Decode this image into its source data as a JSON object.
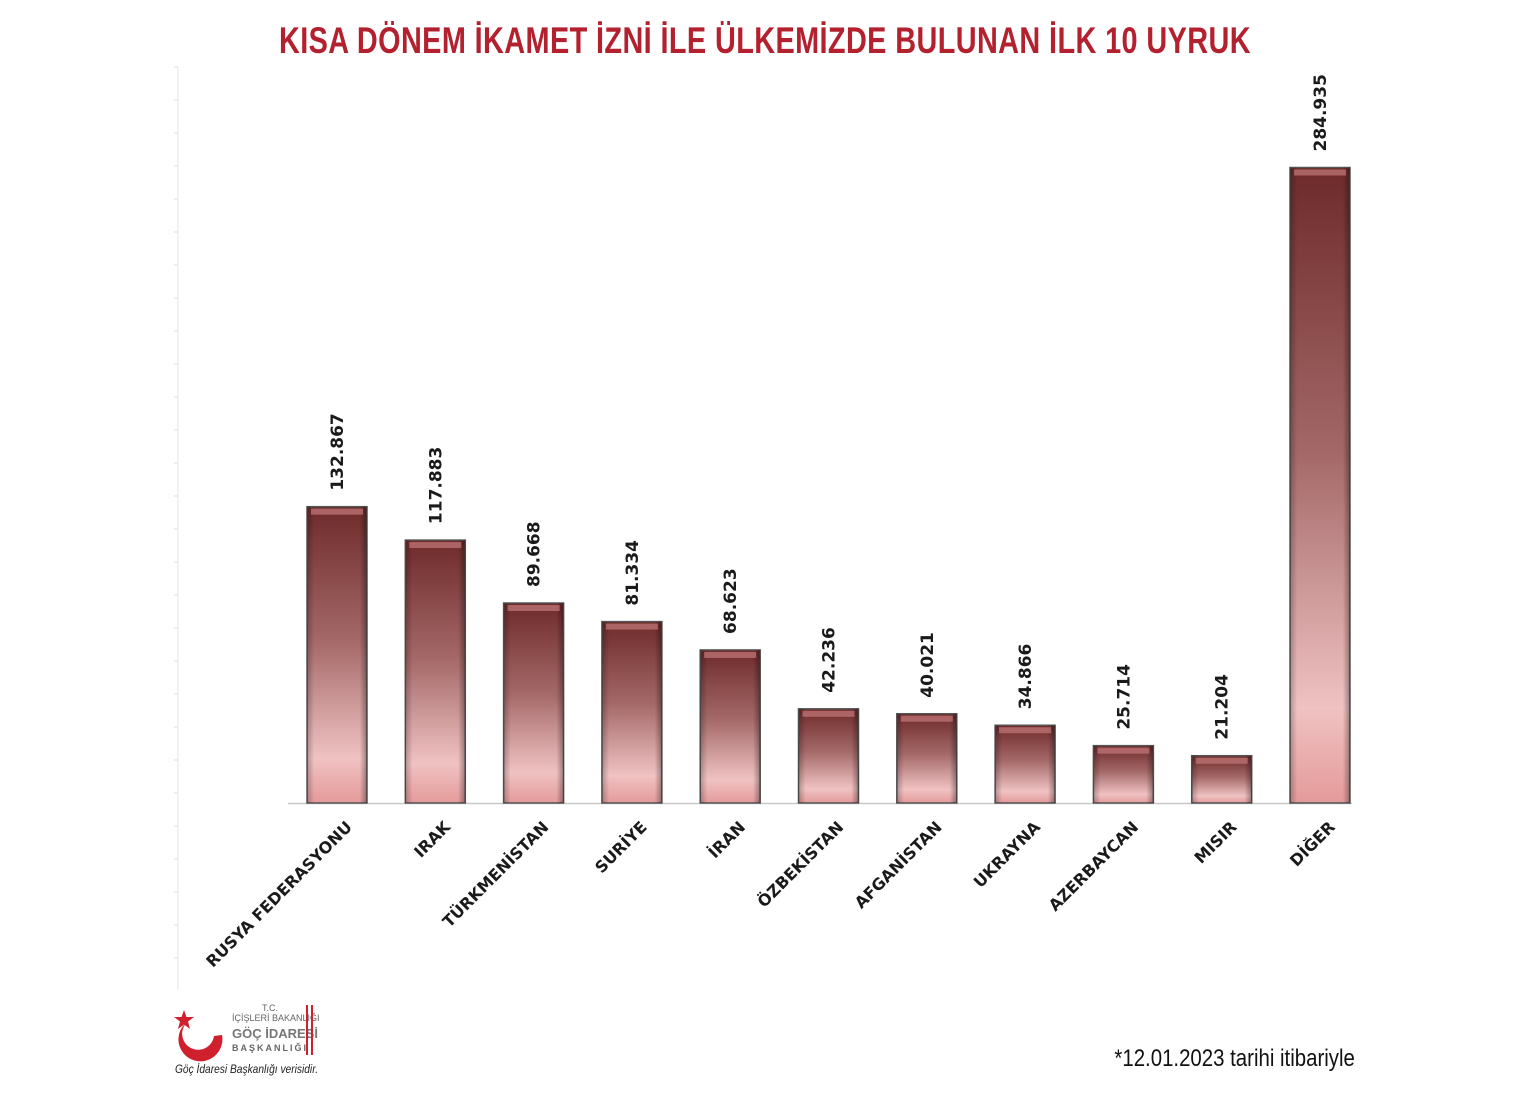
{
  "chart_data": {
    "type": "bar",
    "title": "KISA DÖNEM İKAMET İZNİ İLE ÜLKEMİZDE BULUNAN İLK 10 UYRUK",
    "categories": [
      "RUSYA FEDERASYONU",
      "IRAK",
      "TÜRKMENİSTAN",
      "SURİYE",
      "İRAN",
      "ÖZBEKİSTAN",
      "AFGANİSTAN",
      "UKRAYNA",
      "AZERBAYCAN",
      "MISIR",
      "DİĞER"
    ],
    "values": [
      132867,
      117883,
      89668,
      81334,
      68623,
      42236,
      40021,
      34866,
      25714,
      21204,
      284935
    ],
    "value_labels": [
      "132.867",
      "117.883",
      "89.668",
      "81.334",
      "68.623",
      "42.236",
      "40.021",
      "34.866",
      "25.714",
      "21.204",
      "284.935"
    ],
    "xlabel": "",
    "ylabel": "",
    "ylim": [
      0,
      330000
    ],
    "grid": false,
    "legend": "none",
    "colors": {
      "bar_top": "#6e2a2a",
      "bar_bottom": "#f0c0c0",
      "title": "#b3212f"
    }
  },
  "footnote": "*12.01.2023 tarihi itibariyle",
  "logo": {
    "line1": "T.C.",
    "line2": "İÇİŞLERİ BAKANLIĞI",
    "line3": "GÖÇ İDARESİ",
    "line4": "BAŞKANLIĞI"
  },
  "source": "Göç İdaresi Başkanlığı verisidir."
}
